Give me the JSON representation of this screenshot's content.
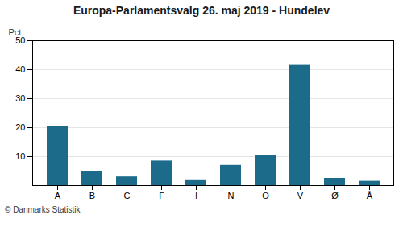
{
  "chart_data": {
    "type": "bar",
    "title": "Europa-Parlamentsvalg 26. maj 2019 - Hundelev",
    "categories": [
      "A",
      "B",
      "C",
      "F",
      "I",
      "N",
      "O",
      "V",
      "Ø",
      "Å"
    ],
    "values": [
      20.5,
      5.0,
      3.0,
      8.5,
      2.0,
      7.0,
      10.5,
      41.5,
      2.5,
      1.5
    ],
    "color": "#1c6b8a",
    "ylabel": "Pct.",
    "ylim": [
      0,
      50
    ],
    "yticks": [
      10,
      20,
      30,
      40,
      50
    ],
    "grid": true,
    "caption": "© Danmarks Statistik"
  }
}
